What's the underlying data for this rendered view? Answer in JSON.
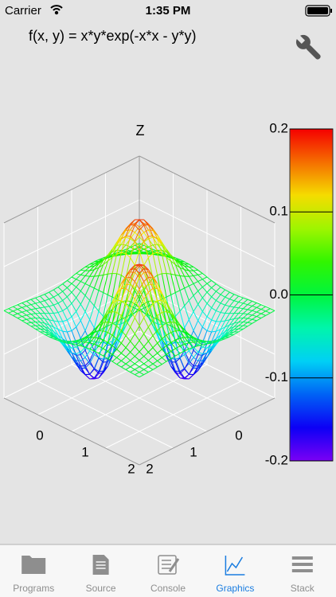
{
  "status_bar": {
    "carrier": "Carrier",
    "time": "1:35 PM"
  },
  "plot": {
    "formula": "f(x, y) = x*y*exp(-x*x - y*y)",
    "z_label": "Z",
    "colorbar_ticks": [
      0.2,
      0.1,
      {
        "value": 0,
        "label": "0.0"
      },
      -0.1,
      -0.2
    ],
    "x_ticks": [
      "0",
      "1",
      "2"
    ],
    "y_ticks": [
      "2",
      "1",
      "0"
    ]
  },
  "tab_bar": {
    "tabs": [
      {
        "label": "Programs"
      },
      {
        "label": "Source"
      },
      {
        "label": "Console"
      },
      {
        "label": "Graphics"
      },
      {
        "label": "Stack"
      }
    ],
    "selected": 3
  }
}
